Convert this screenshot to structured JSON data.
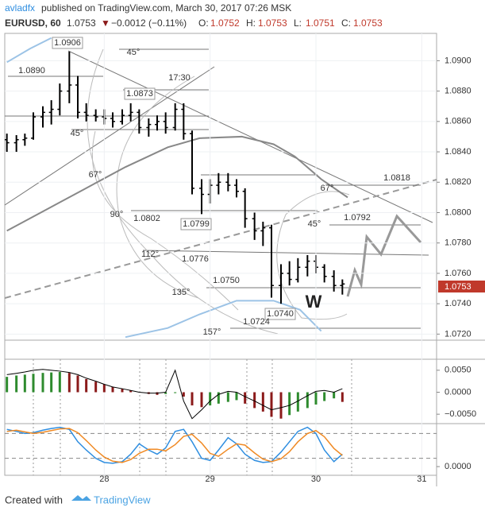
{
  "header": {
    "author": "avladfx",
    "published": "published on TradingView.com, March 30, 2017 07:26 MSK",
    "symbol": "EURUSD, 60",
    "price": "1.0753",
    "change_arrow": "▼",
    "change": "−0.0012 (−0.11%)",
    "ohlc": [
      {
        "label": "O:",
        "value": "1.0752"
      },
      {
        "label": "H:",
        "value": "1.0753"
      },
      {
        "label": "L:",
        "value": "1.0751"
      },
      {
        "label": "C:",
        "value": "1.0753"
      }
    ]
  },
  "footer": {
    "text": "Created with",
    "brand": "TradingView"
  },
  "chart_data": [
    {
      "type": "ohlc",
      "color": "#000000",
      "xlim": [
        27.06,
        31.14
      ],
      "xticks": [
        28,
        29,
        30,
        31
      ],
      "ylim": [
        1.0716,
        1.0918
      ],
      "yticks": [
        {
          "value": 1.072,
          "label": "1.0720"
        },
        {
          "value": 1.074,
          "label": "1.0740"
        },
        {
          "value": 1.076,
          "label": "1.0760"
        },
        {
          "value": 1.078,
          "label": "1.0780"
        },
        {
          "value": 1.08,
          "label": "1.0800"
        },
        {
          "value": 1.082,
          "label": "1.0820"
        },
        {
          "value": 1.084,
          "label": "1.0840"
        },
        {
          "value": 1.086,
          "label": "1.0860"
        },
        {
          "value": 1.088,
          "label": "1.0880"
        },
        {
          "value": 1.09,
          "label": "1.0900"
        }
      ],
      "grid": true,
      "x": [
        27.08,
        27.17,
        27.25,
        27.33,
        27.42,
        27.5,
        27.58,
        27.67,
        27.75,
        27.83,
        27.92,
        28.0,
        28.08,
        28.17,
        28.25,
        28.33,
        28.42,
        28.5,
        28.58,
        28.67,
        28.75,
        28.83,
        28.92,
        29.0,
        29.08,
        29.17,
        29.25,
        29.33,
        29.42,
        29.5,
        29.58,
        29.67,
        29.75,
        29.83,
        29.92,
        30.0,
        30.08,
        30.17,
        30.25
      ],
      "open": [
        1.0848,
        1.0846,
        1.0848,
        1.0849,
        1.0863,
        1.0866,
        1.0868,
        1.088,
        1.0884,
        1.0866,
        1.0864,
        1.0863,
        1.0862,
        1.086,
        1.0864,
        1.0866,
        1.0856,
        1.0858,
        1.086,
        1.0856,
        1.0868,
        1.0852,
        1.0816,
        1.0812,
        1.0818,
        1.082,
        1.0818,
        1.0814,
        1.0796,
        1.0788,
        1.079,
        1.0752,
        1.076,
        1.0756,
        1.0764,
        1.0768,
        1.0764,
        1.0758,
        1.0752
      ],
      "high": [
        1.0852,
        1.0851,
        1.0852,
        1.0866,
        1.087,
        1.0874,
        1.0885,
        1.0906,
        1.089,
        1.0872,
        1.0868,
        1.0868,
        1.0866,
        1.0868,
        1.0872,
        1.0868,
        1.0862,
        1.0864,
        1.0866,
        1.0872,
        1.0872,
        1.0854,
        1.0822,
        1.0822,
        1.0826,
        1.0826,
        1.0822,
        1.0816,
        1.08,
        1.0794,
        1.0792,
        1.0766,
        1.0768,
        1.077,
        1.0772,
        1.0772,
        1.0766,
        1.0762,
        1.0756
      ],
      "low": [
        1.084,
        1.084,
        1.0844,
        1.0848,
        1.0856,
        1.0858,
        1.0864,
        1.0872,
        1.0862,
        1.086,
        1.086,
        1.0858,
        1.0856,
        1.0858,
        1.086,
        1.0852,
        1.085,
        1.0854,
        1.0852,
        1.0854,
        1.0848,
        1.0812,
        1.0799,
        1.0806,
        1.0812,
        1.0814,
        1.081,
        1.079,
        1.0782,
        1.0778,
        1.0744,
        1.074,
        1.0752,
        1.0754,
        1.0758,
        1.076,
        1.0754,
        1.0748,
        1.0746
      ],
      "close": [
        1.0846,
        1.0848,
        1.0849,
        1.0863,
        1.0866,
        1.0868,
        1.088,
        1.0884,
        1.0866,
        1.0864,
        1.0863,
        1.0862,
        1.086,
        1.0864,
        1.0866,
        1.0856,
        1.0858,
        1.086,
        1.0856,
        1.0868,
        1.0852,
        1.0816,
        1.0812,
        1.0818,
        1.082,
        1.0818,
        1.0814,
        1.0796,
        1.0788,
        1.079,
        1.0752,
        1.076,
        1.0756,
        1.0764,
        1.0768,
        1.0764,
        1.0758,
        1.0752,
        1.0753
      ],
      "overlays": [
        {
          "color": "#888888",
          "x": [
            27.08,
            27.4,
            27.8,
            28.2,
            28.6,
            28.9,
            29.3,
            29.6,
            29.8,
            30.05,
            30.3
          ],
          "values": [
            1.0788,
            1.08,
            1.0815,
            1.083,
            1.0843,
            1.0849,
            1.085,
            1.0845,
            1.0837,
            1.0822,
            1.081
          ]
        },
        {
          "color": "#9cc3e6",
          "x": [
            27.08,
            27.3,
            27.5
          ],
          "values": [
            1.0899,
            1.0908,
            1.0915
          ]
        },
        {
          "color": "#9cc3e6",
          "x": [
            28.2,
            28.6,
            28.9,
            29.25,
            29.6,
            29.85,
            30.05
          ],
          "values": [
            1.0718,
            1.0724,
            1.0733,
            1.0742,
            1.0742,
            1.0736,
            1.0722
          ]
        }
      ],
      "annotations": [
        "1.0906",
        "1.0890",
        "45°",
        "17:30",
        "1.0873",
        "45°",
        "67°",
        "90°",
        "1.0802",
        "1.0799",
        "112°",
        "1.0776",
        "1.0750",
        "135°",
        "1.0740",
        "1.0724",
        "157°",
        "W",
        "67°",
        "45°",
        "1.0818",
        "1.0792"
      ]
    },
    {
      "type": "macd",
      "xlim": [
        27.06,
        31.14
      ],
      "ylim": [
        -0.0066,
        0.0075
      ],
      "yticks": [
        {
          "value": 0.005,
          "label": "0.0050"
        },
        {
          "value": 0,
          "label": "0.0000"
        },
        {
          "value": -0.005,
          "label": "−0.0050"
        }
      ],
      "x": [
        27.08,
        27.17,
        27.25,
        27.33,
        27.42,
        27.5,
        27.58,
        27.67,
        27.75,
        27.83,
        27.92,
        28.0,
        28.08,
        28.17,
        28.25,
        28.33,
        28.42,
        28.5,
        28.58,
        28.67,
        28.75,
        28.83,
        28.92,
        29.0,
        29.08,
        29.17,
        29.25,
        29.33,
        29.42,
        29.5,
        29.58,
        29.67,
        29.75,
        29.83,
        29.92,
        30.0,
        30.08,
        30.17,
        30.25
      ],
      "histogram": [
        0.0035,
        0.0038,
        0.004,
        0.0042,
        0.0044,
        0.0045,
        0.0046,
        0.0044,
        0.0038,
        0.003,
        0.0024,
        0.0018,
        0.0012,
        0.0008,
        0.0004,
        0,
        -0.0004,
        -0.0006,
        -0.0004,
        -0.0002,
        -0.001,
        -0.003,
        -0.0034,
        -0.003,
        -0.0026,
        -0.0022,
        -0.0018,
        -0.0026,
        -0.0036,
        -0.0044,
        -0.0056,
        -0.006,
        -0.0052,
        -0.0044,
        -0.0036,
        -0.0028,
        -0.002,
        -0.0014,
        -0.0022
      ],
      "line": [
        0.004,
        0.0043,
        0.0046,
        0.005,
        0.0052,
        0.005,
        0.0048,
        0.0045,
        0.004,
        0.0032,
        0.0025,
        0.0018,
        0.0012,
        0.0008,
        0.0004,
        0,
        -0.0002,
        -0.0002,
        0,
        0.005,
        -0.002,
        -0.006,
        -0.004,
        -0.002,
        -0.0005,
        0.0002,
        0,
        -0.001,
        -0.002,
        -0.003,
        -0.004,
        -0.0035,
        -0.003,
        -0.002,
        -0.0008,
        0.0002,
        0.0004,
        0,
        0.0008
      ],
      "up_color": "#2e8b2e",
      "down_color": "#8b1a1a",
      "line_color": "#000000"
    },
    {
      "type": "stochastic",
      "xlim": [
        27.06,
        31.14
      ],
      "ylim": [
        -21,
        100
      ],
      "yticks": [
        {
          "value": 0,
          "label": "0.0000"
        }
      ],
      "levels": [
        20,
        80
      ],
      "x": [
        27.08,
        27.17,
        27.25,
        27.33,
        27.42,
        27.5,
        27.58,
        27.67,
        27.75,
        27.83,
        27.92,
        28.0,
        28.08,
        28.17,
        28.25,
        28.33,
        28.42,
        28.5,
        28.58,
        28.67,
        28.75,
        28.83,
        28.92,
        29.0,
        29.08,
        29.17,
        29.25,
        29.33,
        29.42,
        29.5,
        29.58,
        29.67,
        29.75,
        29.83,
        29.92,
        30.0,
        30.08,
        30.17,
        30.25
      ],
      "series": [
        {
          "color": "#2f8ee0",
          "values": [
            90,
            85,
            80,
            82,
            88,
            92,
            95,
            90,
            60,
            40,
            20,
            10,
            8,
            12,
            30,
            55,
            40,
            30,
            45,
            85,
            90,
            60,
            20,
            15,
            40,
            70,
            55,
            30,
            15,
            10,
            12,
            35,
            60,
            85,
            95,
            80,
            40,
            12,
            30
          ]
        },
        {
          "color": "#f08a24",
          "values": [
            85,
            88,
            84,
            80,
            83,
            87,
            91,
            92,
            82,
            63,
            40,
            23,
            13,
            10,
            17,
            32,
            42,
            42,
            38,
            53,
            73,
            78,
            57,
            32,
            25,
            42,
            55,
            52,
            33,
            18,
            12,
            19,
            36,
            60,
            80,
            87,
            72,
            44,
            27
          ]
        }
      ]
    }
  ]
}
